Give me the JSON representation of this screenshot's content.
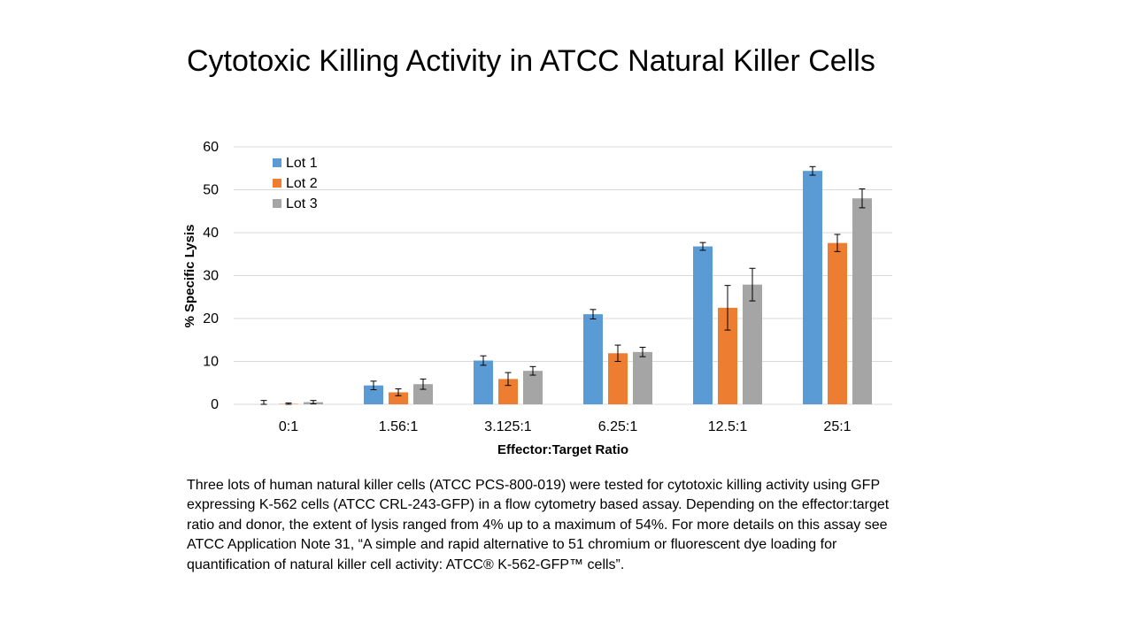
{
  "title": "Cytotoxic Killing Activity in ATCC Natural Killer Cells",
  "caption": "Three lots of human natural killer cells (ATCC PCS-800-019) were tested for cytotoxic killing activity using GFP expressing K-562 cells (ATCC CRL-243-GFP) in a flow cytometry based assay. Depending on the effector:target ratio and donor, the extent of lysis ranged from 4% up to a maximum of 54%. For more details on this assay see ATCC Application Note 31, “A simple and rapid alternative to 51 chromium or fluorescent dye loading for quantification of natural killer cell activity: ATCC® K-562-GFP™ cells”.",
  "colors": {
    "lot1": "#5B9BD5",
    "lot2": "#ED7D31",
    "lot3": "#A5A5A5",
    "grid": "#D9D9D9",
    "axis_text": "#000000"
  },
  "chart_data": {
    "type": "bar",
    "title": "",
    "xlabel": "Effector:Target Ratio",
    "ylabel": "% Specific Lysis",
    "ylim": [
      0,
      60
    ],
    "yticks": [
      0,
      10,
      20,
      30,
      40,
      50,
      60
    ],
    "grid": true,
    "legend_position": "top-left",
    "categories": [
      "0:1",
      "1.56:1",
      "3.125:1",
      "6.25:1",
      "12.5:1",
      "25:1"
    ],
    "series": [
      {
        "name": "Lot 1",
        "color_key": "lot1",
        "values": [
          0.0,
          4.4,
          10.2,
          21.0,
          36.8,
          54.4
        ],
        "errors": [
          0.9,
          1.0,
          1.1,
          1.1,
          0.9,
          1.0
        ]
      },
      {
        "name": "Lot 2",
        "color_key": "lot2",
        "values": [
          0.1,
          2.8,
          5.9,
          11.9,
          22.5,
          37.6
        ],
        "errors": [
          0.2,
          0.8,
          1.5,
          1.9,
          5.2,
          2.0
        ]
      },
      {
        "name": "Lot 3",
        "color_key": "lot3",
        "values": [
          0.5,
          4.7,
          7.8,
          12.2,
          27.9,
          48.0
        ],
        "errors": [
          0.4,
          1.2,
          1.0,
          1.1,
          3.8,
          2.2
        ]
      }
    ]
  }
}
